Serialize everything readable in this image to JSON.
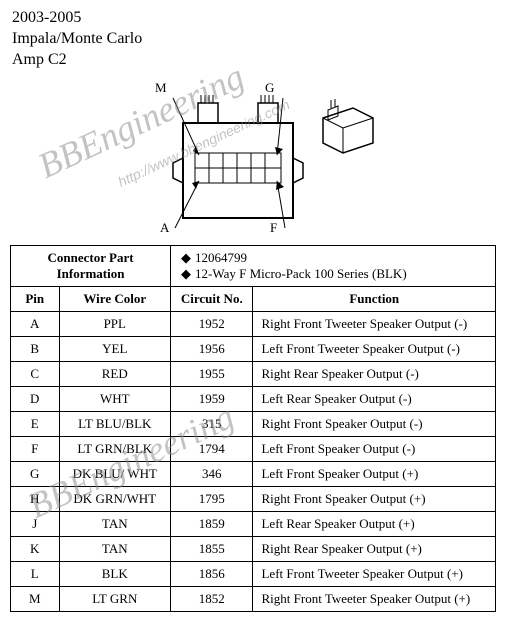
{
  "header": {
    "years": "2003-2005",
    "model": "Impala/Monte Carlo",
    "connector": "Amp C2"
  },
  "watermark": {
    "text1": "BBEngineering",
    "url": "http://www.bbengineering.com",
    "text2": "BBEngineering"
  },
  "diagram": {
    "pin_labels": [
      "M",
      "G",
      "A",
      "F"
    ],
    "connector_color": "#000000",
    "line_width": 1
  },
  "connector_info": {
    "header_label": "Connector Part Information",
    "part_number": "12064799",
    "series": "12-Way F Micro-Pack 100 Series (BLK)"
  },
  "columns": {
    "pin": "Pin",
    "wire_color": "Wire Color",
    "circuit_no": "Circuit No.",
    "function": "Function"
  },
  "rows": [
    {
      "pin": "A",
      "wire_color": "PPL",
      "circuit": "1952",
      "function": "Right Front Tweeter Speaker Output (-)"
    },
    {
      "pin": "B",
      "wire_color": "YEL",
      "circuit": "1956",
      "function": "Left Front Tweeter Speaker Output (-)"
    },
    {
      "pin": "C",
      "wire_color": "RED",
      "circuit": "1955",
      "function": "Right Rear Speaker Output (-)"
    },
    {
      "pin": "D",
      "wire_color": "WHT",
      "circuit": "1959",
      "function": "Left Rear Speaker Output (-)"
    },
    {
      "pin": "E",
      "wire_color": "LT BLU/BLK",
      "circuit": "315",
      "function": "Right Front Speaker Output (-)"
    },
    {
      "pin": "F",
      "wire_color": "LT GRN/BLK",
      "circuit": "1794",
      "function": "Left Front Speaker Output (-)"
    },
    {
      "pin": "G",
      "wire_color": "DK BLU/ WHT",
      "circuit": "346",
      "function": "Left Front Speaker Output (+)"
    },
    {
      "pin": "H",
      "wire_color": "DK GRN/WHT",
      "circuit": "1795",
      "function": "Right Front Speaker Output (+)"
    },
    {
      "pin": "J",
      "wire_color": "TAN",
      "circuit": "1859",
      "function": "Left Rear Speaker Output (+)"
    },
    {
      "pin": "K",
      "wire_color": "TAN",
      "circuit": "1855",
      "function": "Right Rear Speaker Output (+)"
    },
    {
      "pin": "L",
      "wire_color": "BLK",
      "circuit": "1856",
      "function": "Left Front Tweeter Speaker Output (+)"
    },
    {
      "pin": "M",
      "wire_color": "LT GRN",
      "circuit": "1852",
      "function": "Right Front Tweeter Speaker Output (+)"
    }
  ],
  "styling": {
    "background": "#ffffff",
    "text_color": "#000000",
    "border_color": "#000000",
    "font_family": "Times New Roman",
    "header_fontsize": 16,
    "table_fontsize": 13,
    "watermark_color": "#888888",
    "watermark_opacity": 0.5
  }
}
